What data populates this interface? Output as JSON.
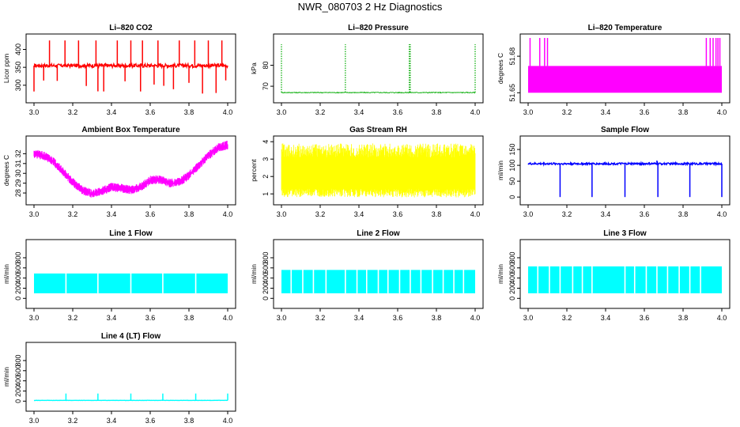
{
  "page": {
    "title": "NWR_080703  2 Hz Diagnostics"
  },
  "chart_data": [
    {
      "type": "line",
      "title": "Li–820 CO2",
      "ylabel": "Licor ppm",
      "xlim": [
        3.0,
        4.0
      ],
      "ylim": [
        262,
        432
      ],
      "yticks": [
        300,
        350,
        400
      ],
      "xticks": [
        3.0,
        3.2,
        3.4,
        3.6,
        3.8,
        4.0
      ],
      "color": "#ff0000",
      "baseline": 355,
      "noise": 5,
      "spikes_up": [
        3.08,
        3.16,
        3.23,
        3.32,
        3.43,
        3.5,
        3.56,
        3.64,
        3.75,
        3.83,
        3.9,
        3.97
      ],
      "spikes_up_value": 425,
      "spikes_down": [
        3.0,
        3.05,
        3.12,
        3.27,
        3.33,
        3.36,
        3.47,
        3.55,
        3.62,
        3.67,
        3.72,
        3.8,
        3.87,
        3.94,
        3.99
      ],
      "spikes_down_value": 305
    },
    {
      "type": "line",
      "title": "Li–820 Pressure",
      "ylabel": "kPa",
      "xlim": [
        3.0,
        4.0
      ],
      "ylim": [
        64,
        93
      ],
      "yticks": [
        70,
        80
      ],
      "xticks": [
        3.0,
        3.2,
        3.4,
        3.6,
        3.8,
        4.0
      ],
      "color": "#00aa00",
      "baseline": 67,
      "noise": 0.2,
      "spikes_up": [
        3.0,
        3.33,
        3.66,
        3.665,
        4.0
      ],
      "spikes_up_value": 90,
      "dotted": true
    },
    {
      "type": "band",
      "title": "Li–820 Temperature",
      "ylabel": "degrees C",
      "xlim": [
        3.0,
        4.0
      ],
      "ylim": [
        51.645,
        51.695
      ],
      "yticks": [
        51.65,
        51.68
      ],
      "ytick_labels": [
        "51.65",
        "51.68"
      ],
      "xticks": [
        3.0,
        3.2,
        3.4,
        3.6,
        3.8,
        4.0
      ],
      "color": "#ff00ff",
      "band": [
        51.65,
        51.672
      ],
      "spikes_up": [
        3.01,
        3.06,
        3.085,
        3.1,
        3.92,
        3.94,
        3.955,
        3.97,
        3.98,
        3.99
      ],
      "spikes_up_value": 51.695
    },
    {
      "type": "line",
      "title": "Ambient Box Temperature",
      "ylabel": "degrees C",
      "xlim": [
        3.0,
        4.0
      ],
      "ylim": [
        27.2,
        33.4
      ],
      "yticks": [
        28,
        29,
        30,
        31,
        32
      ],
      "xticks": [
        3.0,
        3.2,
        3.4,
        3.6,
        3.8,
        4.0
      ],
      "color": "#ff00ff",
      "noise": 0.45,
      "x": [
        3.0,
        3.05,
        3.1,
        3.15,
        3.2,
        3.25,
        3.3,
        3.35,
        3.4,
        3.45,
        3.5,
        3.55,
        3.6,
        3.65,
        3.7,
        3.75,
        3.8,
        3.85,
        3.9,
        3.95,
        4.0
      ],
      "y": [
        32.0,
        31.8,
        31.2,
        30.2,
        29.1,
        28.3,
        27.9,
        28.2,
        28.6,
        28.5,
        28.3,
        28.6,
        29.3,
        29.4,
        29.0,
        29.1,
        29.8,
        30.8,
        31.8,
        32.6,
        32.9
      ]
    },
    {
      "type": "band",
      "title": "Gas Stream RH",
      "ylabel": "percent",
      "xlim": [
        3.0,
        4.0
      ],
      "ylim": [
        0.6,
        4.1
      ],
      "yticks": [
        1,
        2,
        3,
        4
      ],
      "xticks": [
        3.0,
        3.2,
        3.4,
        3.6,
        3.8,
        4.0
      ],
      "color": "#ffff00",
      "noise_band": [
        0.8,
        3.9
      ],
      "core": [
        1.3,
        3.1
      ]
    },
    {
      "type": "line",
      "title": "Sample Flow",
      "ylabel": "ml/min",
      "xlim": [
        3.0,
        4.0
      ],
      "ylim": [
        -12,
        180
      ],
      "yticks": [
        0,
        50,
        100,
        150
      ],
      "xticks": [
        3.0,
        3.2,
        3.4,
        3.6,
        3.8,
        4.0
      ],
      "color": "#0000ff",
      "baseline": 105,
      "noise": 3,
      "spikes_down": [
        3.165,
        3.33,
        3.5,
        3.67,
        3.835,
        4.0
      ],
      "spikes_down_value": 0,
      "spikes_up": [
        3.665
      ],
      "spikes_up_value": 115
    },
    {
      "type": "band",
      "title": "Line 1 Flow",
      "ylabel": "ml/min",
      "xlim": [
        3.0,
        4.0
      ],
      "ylim": [
        -120,
        1080
      ],
      "yticks": [
        0,
        200,
        400,
        600,
        800
      ],
      "xticks": [
        3.0,
        3.2,
        3.4,
        3.6,
        3.8,
        4.0
      ],
      "color": "#00ffff",
      "band": [
        100,
        490
      ],
      "gaps": [
        3.165,
        3.33,
        3.5,
        3.665,
        3.835
      ]
    },
    {
      "type": "band",
      "title": "Line 2 Flow",
      "ylabel": "ml/min",
      "xlim": [
        3.0,
        4.0
      ],
      "ylim": [
        -120,
        1080
      ],
      "yticks": [
        0,
        200,
        400,
        600,
        800
      ],
      "xticks": [
        3.0,
        3.2,
        3.4,
        3.6,
        3.8,
        4.0
      ],
      "color": "#00ffff",
      "band": [
        100,
        560
      ],
      "gaps": [
        3.05,
        3.11,
        3.165,
        3.23,
        3.33,
        3.39,
        3.44,
        3.5,
        3.55,
        3.61,
        3.665,
        3.72,
        3.78,
        3.835,
        3.89,
        3.94
      ]
    },
    {
      "type": "band",
      "title": "Line 3 Flow",
      "ylabel": "ml/min",
      "xlim": [
        3.0,
        4.0
      ],
      "ylim": [
        -120,
        1080
      ],
      "yticks": [
        0,
        200,
        400,
        600,
        800
      ],
      "xticks": [
        3.0,
        3.2,
        3.4,
        3.6,
        3.8,
        4.0
      ],
      "color": "#00ffff",
      "band": [
        100,
        630
      ],
      "gaps": [
        3.05,
        3.11,
        3.165,
        3.23,
        3.28,
        3.33,
        3.5,
        3.55,
        3.61,
        3.665,
        3.72,
        3.78,
        3.835,
        3.89
      ]
    },
    {
      "type": "line",
      "title": "Line 4 (LT) Flow",
      "ylabel": "ml/min",
      "xlim": [
        3.0,
        4.0
      ],
      "ylim": [
        -120,
        1080
      ],
      "yticks": [
        0,
        200,
        400,
        600,
        800
      ],
      "xticks": [
        3.0,
        3.2,
        3.4,
        3.6,
        3.8,
        4.0
      ],
      "color": "#00ffff",
      "baseline": 15,
      "noise": 2,
      "spikes_up": [
        3.165,
        3.33,
        3.5,
        3.665,
        3.835,
        4.0
      ],
      "spikes_up_value": 150
    }
  ]
}
